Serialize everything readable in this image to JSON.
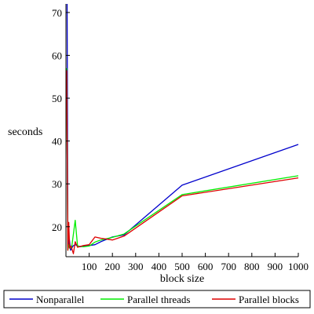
{
  "chart_data": {
    "type": "line",
    "title": "",
    "xlabel": "block size",
    "ylabel": "seconds",
    "xlim": [
      0,
      1000
    ],
    "ylim": [
      13,
      72
    ],
    "grid": false,
    "legend_position": "bottom",
    "x_ticks": [
      100,
      200,
      300,
      400,
      500,
      600,
      700,
      800,
      900,
      1000
    ],
    "y_ticks": [
      20,
      30,
      40,
      50,
      60,
      70
    ],
    "series": [
      {
        "name": "Nonparallel",
        "color": "#0000cc",
        "points": [
          [
            5,
            72
          ],
          [
            8,
            15.5
          ],
          [
            10,
            15
          ],
          [
            15,
            17
          ],
          [
            20,
            14.5
          ],
          [
            30,
            15.5
          ],
          [
            40,
            15.8
          ],
          [
            60,
            15.3
          ],
          [
            100,
            15.6
          ],
          [
            125,
            15.8
          ],
          [
            150,
            16.5
          ],
          [
            200,
            17.6
          ],
          [
            250,
            18.1
          ],
          [
            500,
            29.7
          ],
          [
            1000,
            39.2
          ]
        ]
      },
      {
        "name": "Parallel threads",
        "color": "#00ee00",
        "points": [
          [
            3,
            57
          ],
          [
            8,
            14.5
          ],
          [
            12,
            15.8
          ],
          [
            18,
            15
          ],
          [
            25,
            15.3
          ],
          [
            40,
            21.5
          ],
          [
            50,
            15.5
          ],
          [
            75,
            15.3
          ],
          [
            100,
            15.5
          ],
          [
            125,
            16.4
          ],
          [
            150,
            16.9
          ],
          [
            200,
            17.5
          ],
          [
            250,
            18.3
          ],
          [
            500,
            27.5
          ],
          [
            1000,
            31.9
          ]
        ]
      },
      {
        "name": "Parallel blocks",
        "color": "#dd0000",
        "points": [
          [
            3,
            56.5
          ],
          [
            8,
            14.5
          ],
          [
            12,
            21
          ],
          [
            16,
            15
          ],
          [
            22,
            15.5
          ],
          [
            32,
            13.7
          ],
          [
            40,
            16.5
          ],
          [
            50,
            15.2
          ],
          [
            75,
            15.6
          ],
          [
            100,
            15.8
          ],
          [
            125,
            17.6
          ],
          [
            150,
            17.3
          ],
          [
            200,
            16.9
          ],
          [
            250,
            17.8
          ],
          [
            500,
            27.2
          ],
          [
            1000,
            31.4
          ]
        ]
      }
    ]
  }
}
